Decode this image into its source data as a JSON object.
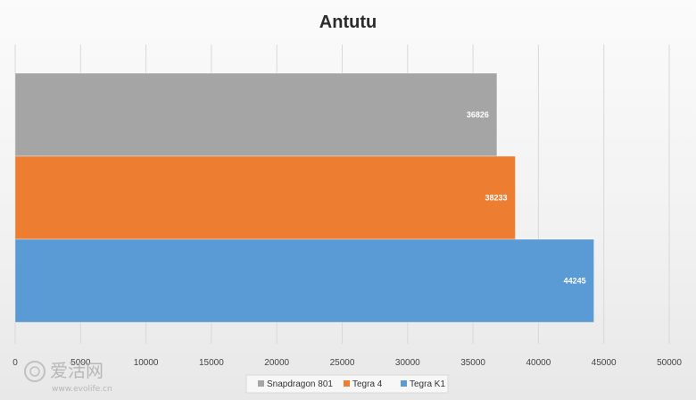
{
  "chart_data": {
    "type": "bar",
    "orientation": "horizontal",
    "title": "Antutu",
    "xlabel": "",
    "ylabel": "",
    "xlim": [
      0,
      50000
    ],
    "x_ticks": [
      0,
      5000,
      10000,
      15000,
      20000,
      25000,
      30000,
      35000,
      40000,
      45000,
      50000
    ],
    "grid": true,
    "legend_position": "bottom",
    "series": [
      {
        "name": "Snapdragon 801",
        "values": [
          36826
        ],
        "color": "#a5a5a5"
      },
      {
        "name": "Tegra 4",
        "values": [
          38233
        ],
        "color": "#ed7d31"
      },
      {
        "name": "Tegra K1",
        "values": [
          44245
        ],
        "color": "#5b9bd5"
      }
    ]
  },
  "watermark": {
    "logo_text": "爱活网",
    "url_text": "www.evolife.cn"
  }
}
